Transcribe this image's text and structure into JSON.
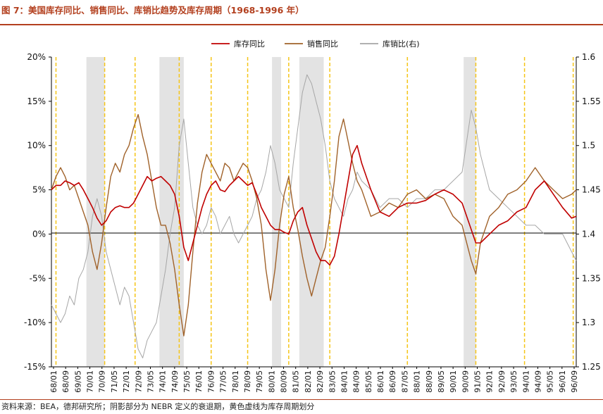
{
  "title": "图 7：美国库存同比、销售同比、库销比趋势及库存周期（1968-1996 年）",
  "source": "资料来源：BEA，德邦研究所；阴影部分为 NEBR 定义的衰退期，黄色虚线为库存周期划分",
  "colors": {
    "title": "#b3401f",
    "inventory": "#c00000",
    "sales": "#a0622a",
    "ratio": "#a6a6a6",
    "recession": "#e3e3e3",
    "cycle_line": "#f5c518"
  },
  "chart_data": {
    "type": "line",
    "legend": [
      "库存同比",
      "销售同比",
      "库销比(右)"
    ],
    "legend_position": "top",
    "y_left": {
      "ticks": [
        "20%",
        "15%",
        "10%",
        "5%",
        "0%",
        "-5%",
        "-10%",
        "-15%"
      ],
      "range": [
        -15,
        20
      ]
    },
    "y_right": {
      "ticks": [
        "1.6",
        "1.55",
        "1.5",
        "1.45",
        "1.4",
        "1.35",
        "1.3",
        "1.25"
      ],
      "range": [
        1.25,
        1.6
      ]
    },
    "x_ticks": [
      "68/01",
      "68/09",
      "69/05",
      "70/01",
      "70/09",
      "71/05",
      "72/01",
      "72/09",
      "73/05",
      "74/01",
      "74/09",
      "75/05",
      "76/01",
      "76/09",
      "77/05",
      "78/01",
      "78/09",
      "79/05",
      "80/01",
      "80/09",
      "81/05",
      "82/01",
      "82/09",
      "83/05",
      "84/01",
      "84/09",
      "85/05",
      "86/01",
      "86/09",
      "87/05",
      "88/01",
      "88/09",
      "89/05",
      "90/01",
      "90/09",
      "91/05",
      "92/01",
      "92/09",
      "93/05",
      "94/01",
      "94/09",
      "95/05",
      "96/01",
      "96/09"
    ],
    "x_range": [
      1968.0,
      1996.75
    ],
    "recessions": [
      [
        1969.917,
        1970.917
      ],
      [
        1973.917,
        1975.25
      ],
      [
        1980.083,
        1980.583
      ],
      [
        1981.583,
        1982.917
      ],
      [
        1990.583,
        1991.25
      ]
    ],
    "cycle_lines": [
      1968.25,
      1970.917,
      1972.583,
      1975.0,
      1976.75,
      1978.75,
      1981.0,
      1983.25,
      1987.5,
      1991.25,
      1993.917,
      1996.583
    ],
    "series": [
      {
        "name": "库存同比",
        "axis": "left",
        "x": [
          1968.0,
          1968.25,
          1968.5,
          1968.75,
          1969.0,
          1969.25,
          1969.5,
          1969.75,
          1970.0,
          1970.25,
          1970.5,
          1970.75,
          1971.0,
          1971.25,
          1971.5,
          1971.75,
          1972.0,
          1972.25,
          1972.5,
          1972.75,
          1973.0,
          1973.25,
          1973.5,
          1973.75,
          1974.0,
          1974.25,
          1974.5,
          1974.75,
          1975.0,
          1975.25,
          1975.5,
          1975.75,
          1976.0,
          1976.25,
          1976.5,
          1976.75,
          1977.0,
          1977.25,
          1977.5,
          1977.75,
          1978.0,
          1978.25,
          1978.5,
          1978.75,
          1979.0,
          1979.25,
          1979.5,
          1979.75,
          1980.0,
          1980.25,
          1980.5,
          1980.75,
          1981.0,
          1981.25,
          1981.5,
          1981.75,
          1982.0,
          1982.25,
          1982.5,
          1982.75,
          1983.0,
          1983.25,
          1983.5,
          1983.75,
          1984.0,
          1984.25,
          1984.5,
          1984.75,
          1985.0,
          1985.5,
          1986.0,
          1986.5,
          1987.0,
          1987.5,
          1988.0,
          1988.5,
          1989.0,
          1989.5,
          1990.0,
          1990.5,
          1991.0,
          1991.25,
          1991.5,
          1992.0,
          1992.5,
          1993.0,
          1993.5,
          1994.0,
          1994.5,
          1995.0,
          1995.5,
          1996.0,
          1996.5,
          1996.75
        ],
        "values": [
          5.0,
          5.5,
          5.5,
          6.0,
          5.8,
          5.5,
          5.8,
          5.0,
          4.0,
          3.0,
          1.8,
          1.0,
          1.5,
          2.5,
          3.0,
          3.2,
          3.0,
          3.0,
          3.5,
          4.5,
          5.5,
          6.5,
          6.0,
          6.3,
          6.5,
          6.0,
          5.5,
          4.5,
          2.0,
          -1.5,
          -3.0,
          -1.0,
          1.0,
          3.0,
          4.5,
          5.5,
          6.0,
          5.0,
          4.8,
          5.5,
          6.0,
          6.5,
          6.0,
          5.5,
          5.8,
          4.5,
          3.0,
          2.0,
          1.0,
          0.5,
          0.5,
          0.2,
          0.0,
          1.5,
          2.5,
          3.0,
          1.0,
          -0.5,
          -2.0,
          -3.0,
          -3.0,
          -3.5,
          -2.5,
          0.0,
          3.0,
          6.0,
          9.0,
          10.0,
          8.0,
          5.0,
          2.5,
          2.0,
          3.0,
          3.5,
          3.5,
          3.8,
          4.5,
          5.0,
          4.5,
          3.5,
          0.5,
          -1.0,
          -1.0,
          0.0,
          1.0,
          1.5,
          2.5,
          3.0,
          5.0,
          6.0,
          4.5,
          3.0,
          1.8,
          2.0
        ]
      },
      {
        "name": "销售同比",
        "axis": "left",
        "x": [
          1968.0,
          1968.25,
          1968.5,
          1968.75,
          1969.0,
          1969.25,
          1969.5,
          1969.75,
          1970.0,
          1970.25,
          1970.5,
          1970.75,
          1971.0,
          1971.25,
          1971.5,
          1971.75,
          1972.0,
          1972.25,
          1972.5,
          1972.75,
          1973.0,
          1973.25,
          1973.5,
          1973.75,
          1974.0,
          1974.25,
          1974.5,
          1974.75,
          1975.0,
          1975.25,
          1975.5,
          1975.75,
          1976.0,
          1976.25,
          1976.5,
          1976.75,
          1977.0,
          1977.25,
          1977.5,
          1977.75,
          1978.0,
          1978.25,
          1978.5,
          1978.75,
          1979.0,
          1979.25,
          1979.5,
          1979.75,
          1980.0,
          1980.25,
          1980.5,
          1980.75,
          1981.0,
          1981.25,
          1981.5,
          1981.75,
          1982.0,
          1982.25,
          1982.5,
          1982.75,
          1983.0,
          1983.25,
          1983.5,
          1983.75,
          1984.0,
          1984.25,
          1984.5,
          1984.75,
          1985.0,
          1985.5,
          1986.0,
          1986.5,
          1987.0,
          1987.5,
          1988.0,
          1988.5,
          1989.0,
          1989.5,
          1990.0,
          1990.5,
          1991.0,
          1991.25,
          1991.5,
          1992.0,
          1992.5,
          1993.0,
          1993.5,
          1994.0,
          1994.5,
          1995.0,
          1995.5,
          1996.0,
          1996.5,
          1996.75
        ],
        "values": [
          5.0,
          6.5,
          7.5,
          6.5,
          5.0,
          5.5,
          4.0,
          2.5,
          1.0,
          -2.0,
          -4.0,
          -1.0,
          3.0,
          6.5,
          8.0,
          7.0,
          9.0,
          10.0,
          12.0,
          13.5,
          11.0,
          9.0,
          6.0,
          3.0,
          1.0,
          1.0,
          -1.0,
          -4.0,
          -8.0,
          -11.5,
          -8.0,
          -2.0,
          3.5,
          7.0,
          9.0,
          8.0,
          7.0,
          6.0,
          8.0,
          7.5,
          6.0,
          7.0,
          8.0,
          7.5,
          6.0,
          4.0,
          1.0,
          -4.0,
          -7.5,
          -4.0,
          1.0,
          4.5,
          6.5,
          3.0,
          0.5,
          -2.5,
          -5.0,
          -7.0,
          -5.0,
          -3.0,
          -1.5,
          2.0,
          6.0,
          11.0,
          13.0,
          10.5,
          8.0,
          6.0,
          5.0,
          2.0,
          2.5,
          3.5,
          3.0,
          4.5,
          5.0,
          4.0,
          4.5,
          4.0,
          2.0,
          1.0,
          -3.0,
          -4.5,
          -1.0,
          2.0,
          3.0,
          4.5,
          5.0,
          6.0,
          7.5,
          6.0,
          5.0,
          4.0,
          4.5,
          5.0
        ]
      },
      {
        "name": "库销比(右)",
        "axis": "right",
        "x": [
          1968.0,
          1968.25,
          1968.5,
          1968.75,
          1969.0,
          1969.25,
          1969.5,
          1969.75,
          1970.0,
          1970.25,
          1970.5,
          1970.75,
          1971.0,
          1971.25,
          1971.5,
          1971.75,
          1972.0,
          1972.25,
          1972.5,
          1972.75,
          1973.0,
          1973.25,
          1973.5,
          1973.75,
          1974.0,
          1974.25,
          1974.5,
          1974.75,
          1975.0,
          1975.25,
          1975.5,
          1975.75,
          1976.0,
          1976.25,
          1976.5,
          1976.75,
          1977.0,
          1977.25,
          1977.5,
          1977.75,
          1978.0,
          1978.25,
          1978.5,
          1978.75,
          1979.0,
          1979.25,
          1979.5,
          1979.75,
          1980.0,
          1980.25,
          1980.5,
          1980.75,
          1981.0,
          1981.25,
          1981.5,
          1981.75,
          1982.0,
          1982.25,
          1982.5,
          1982.75,
          1983.0,
          1983.25,
          1983.5,
          1983.75,
          1984.0,
          1984.25,
          1984.5,
          1984.75,
          1985.0,
          1985.5,
          1986.0,
          1986.5,
          1987.0,
          1987.5,
          1988.0,
          1988.5,
          1989.0,
          1989.5,
          1990.0,
          1990.5,
          1991.0,
          1991.25,
          1991.5,
          1992.0,
          1992.5,
          1993.0,
          1993.5,
          1994.0,
          1994.5,
          1995.0,
          1995.5,
          1996.0,
          1996.5,
          1996.75
        ],
        "values": [
          1.32,
          1.31,
          1.3,
          1.31,
          1.33,
          1.32,
          1.35,
          1.36,
          1.38,
          1.42,
          1.44,
          1.42,
          1.38,
          1.36,
          1.34,
          1.32,
          1.34,
          1.33,
          1.3,
          1.27,
          1.26,
          1.28,
          1.29,
          1.3,
          1.33,
          1.36,
          1.4,
          1.43,
          1.5,
          1.53,
          1.48,
          1.43,
          1.41,
          1.4,
          1.41,
          1.43,
          1.42,
          1.4,
          1.41,
          1.42,
          1.4,
          1.39,
          1.4,
          1.41,
          1.42,
          1.44,
          1.45,
          1.47,
          1.5,
          1.48,
          1.45,
          1.44,
          1.43,
          1.48,
          1.52,
          1.56,
          1.58,
          1.57,
          1.55,
          1.53,
          1.5,
          1.46,
          1.44,
          1.43,
          1.42,
          1.44,
          1.45,
          1.47,
          1.46,
          1.45,
          1.43,
          1.44,
          1.44,
          1.43,
          1.44,
          1.44,
          1.45,
          1.45,
          1.46,
          1.47,
          1.54,
          1.52,
          1.49,
          1.45,
          1.44,
          1.43,
          1.42,
          1.41,
          1.41,
          1.4,
          1.4,
          1.4,
          1.38,
          1.37
        ]
      }
    ]
  }
}
